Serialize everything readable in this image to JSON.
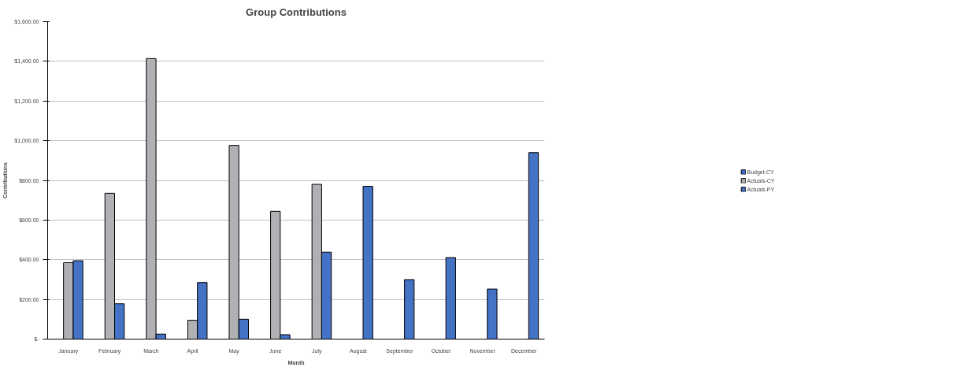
{
  "chart_data": {
    "type": "bar",
    "title": "Group Contributions",
    "xlabel": "Month",
    "ylabel": "Contributions",
    "categories": [
      "January",
      "February",
      "March",
      "April",
      "May",
      "June",
      "July",
      "August",
      "September",
      "October",
      "November",
      "December"
    ],
    "series": [
      {
        "name": "Budget-CY",
        "color": "#3a6fd0",
        "values": [
          null,
          null,
          null,
          null,
          null,
          null,
          null,
          null,
          null,
          null,
          null,
          null
        ]
      },
      {
        "name": "Actuals-CY",
        "color": "#b0b1b5",
        "values": [
          385,
          735,
          1414,
          95,
          976,
          644,
          780,
          null,
          null,
          null,
          null,
          null
        ]
      },
      {
        "name": "Actuals-PY",
        "color": "#4472c4",
        "values": [
          395,
          178,
          25,
          285,
          100,
          22,
          438,
          770,
          300,
          411,
          252,
          940
        ]
      }
    ],
    "ylim": [
      0,
      1600
    ],
    "yticks": [
      {
        "value": 0,
        "label": "$-"
      },
      {
        "value": 200,
        "label": "$200.00"
      },
      {
        "value": 400,
        "label": "$400.00"
      },
      {
        "value": 600,
        "label": "$600.00"
      },
      {
        "value": 800,
        "label": "$800.00"
      },
      {
        "value": 1000,
        "label": "$1,000.00"
      },
      {
        "value": 1200,
        "label": "$1,200.00"
      },
      {
        "value": 1400,
        "label": "$1,400.00"
      },
      {
        "value": 1600,
        "label": "$1,600.00"
      }
    ],
    "grid": "y",
    "legend": "right"
  }
}
